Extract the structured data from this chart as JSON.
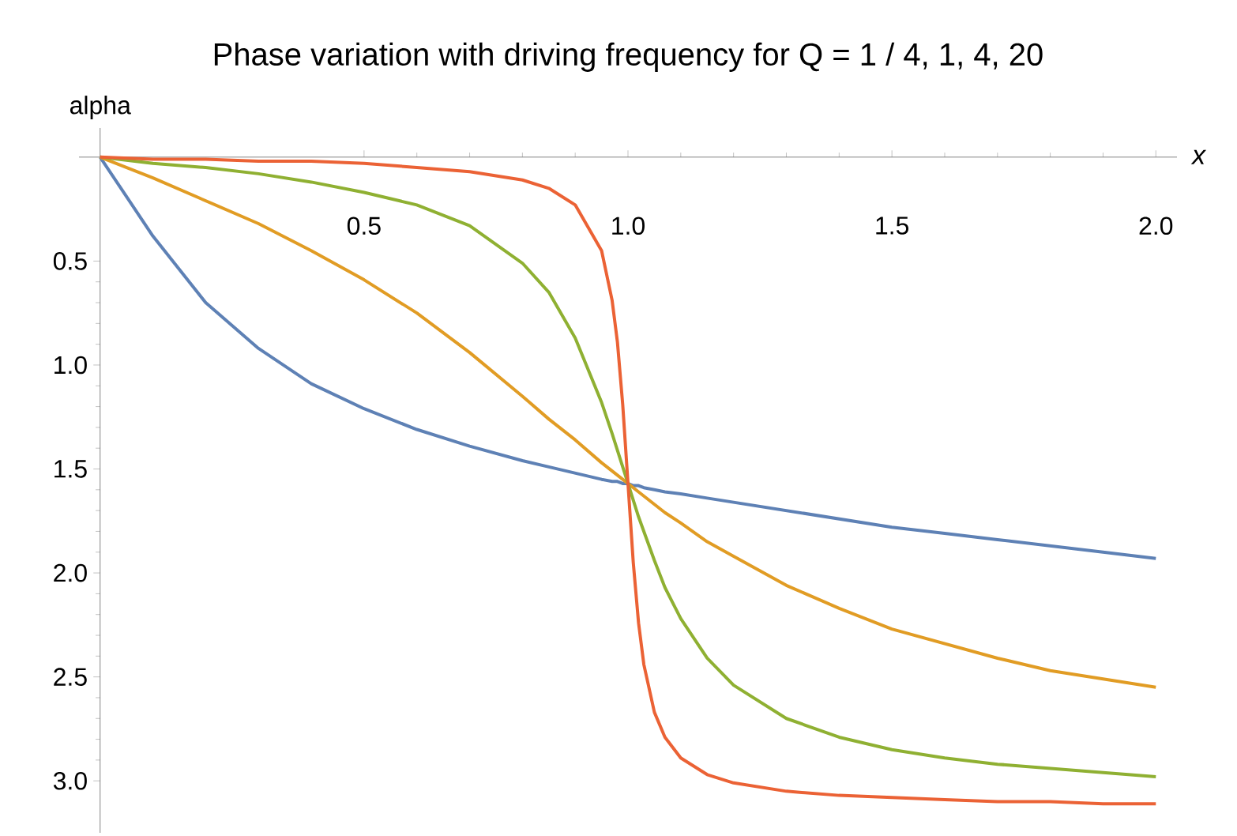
{
  "chart_data": {
    "type": "line",
    "title": "Phase variation with driving frequency for Q = 1 / 4,  1,  4,  20",
    "xlabel": "x",
    "ylabel": "alpha",
    "x": [
      0,
      0.1,
      0.2,
      0.3,
      0.4,
      0.5,
      0.6,
      0.7,
      0.8,
      0.85,
      0.9,
      0.95,
      0.97,
      0.98,
      0.99,
      1.0,
      1.01,
      1.02,
      1.03,
      1.05,
      1.07,
      1.1,
      1.15,
      1.2,
      1.3,
      1.4,
      1.5,
      1.6,
      1.7,
      1.8,
      1.9,
      2.0
    ],
    "series": [
      {
        "color": "#5e81b5",
        "values": [
          0,
          0.38,
          0.7,
          0.92,
          1.09,
          1.21,
          1.31,
          1.39,
          1.46,
          1.49,
          1.52,
          1.55,
          1.56,
          1.56,
          1.57,
          1.57,
          1.58,
          1.58,
          1.59,
          1.6,
          1.61,
          1.62,
          1.64,
          1.66,
          1.7,
          1.74,
          1.78,
          1.81,
          1.84,
          1.87,
          1.9,
          1.93
        ]
      },
      {
        "color": "#e19c24",
        "values": [
          0,
          0.1,
          0.21,
          0.32,
          0.45,
          0.59,
          0.75,
          0.94,
          1.15,
          1.26,
          1.36,
          1.47,
          1.51,
          1.53,
          1.55,
          1.57,
          1.59,
          1.61,
          1.63,
          1.67,
          1.71,
          1.76,
          1.85,
          1.92,
          2.06,
          2.17,
          2.27,
          2.34,
          2.41,
          2.47,
          2.51,
          2.55
        ]
      },
      {
        "color": "#8fb032",
        "values": [
          0,
          0.03,
          0.05,
          0.08,
          0.12,
          0.17,
          0.23,
          0.33,
          0.51,
          0.65,
          0.87,
          1.18,
          1.33,
          1.41,
          1.49,
          1.57,
          1.65,
          1.73,
          1.8,
          1.94,
          2.07,
          2.22,
          2.41,
          2.54,
          2.7,
          2.79,
          2.85,
          2.89,
          2.92,
          2.94,
          2.96,
          2.98
        ]
      },
      {
        "color": "#eb6235",
        "values": [
          0,
          0.01,
          0.01,
          0.02,
          0.02,
          0.03,
          0.05,
          0.07,
          0.11,
          0.15,
          0.23,
          0.45,
          0.69,
          0.89,
          1.19,
          1.57,
          1.95,
          2.24,
          2.44,
          2.67,
          2.79,
          2.89,
          2.97,
          3.01,
          3.05,
          3.07,
          3.08,
          3.09,
          3.1,
          3.1,
          3.11,
          3.11
        ]
      }
    ],
    "xlim": [
      -0.04,
      2.04
    ],
    "ylim": [
      3.25,
      -0.14
    ],
    "xticks": [
      0.5,
      {
        "value": 1,
        "label": "1.0"
      },
      1.5,
      {
        "value": 2,
        "label": "2.0"
      }
    ],
    "yticks": [
      0.5,
      {
        "value": 1,
        "label": "1.0"
      },
      1.5,
      {
        "value": 2,
        "label": "2.0"
      },
      2.5,
      {
        "value": 3,
        "label": "3.0"
      }
    ]
  }
}
